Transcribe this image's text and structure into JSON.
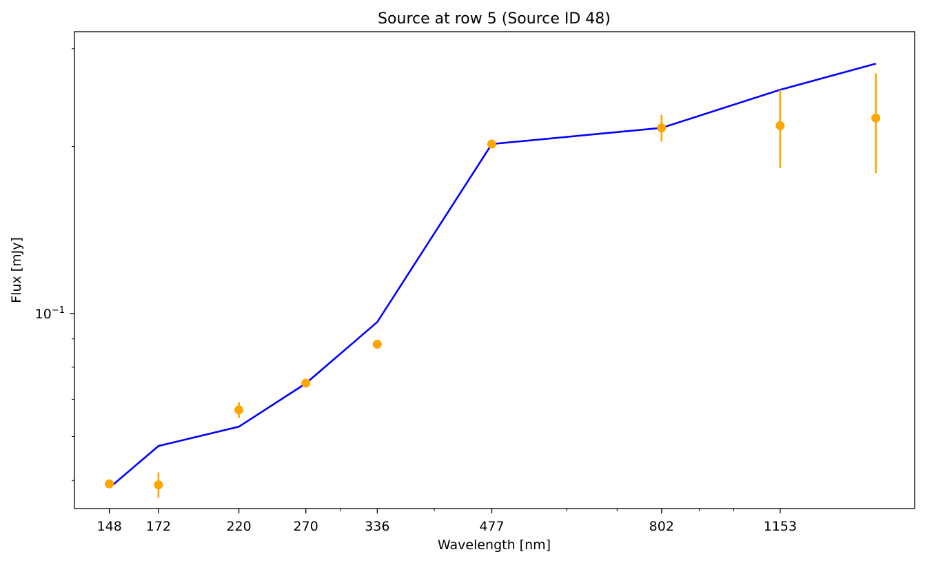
{
  "chart_data": {
    "type": "line",
    "title": "Source at row 5 (Source ID 48)",
    "xlabel": "Wavelength [nm]",
    "ylabel": "Flux [mJy]",
    "x_scale": "log",
    "y_scale": "log",
    "xlim": [
      133,
      1740
    ],
    "ylim": [
      0.0445,
      0.322
    ],
    "x_tick_labels": [
      "148",
      "172",
      "220",
      "270",
      "336",
      "477",
      "802",
      "1153"
    ],
    "x_ticks": [
      148,
      172,
      220,
      270,
      336,
      477,
      802,
      1153
    ],
    "x_minor_ticks": [
      300,
      400,
      600,
      700,
      900,
      1000
    ],
    "y_tick_label": "10",
    "y_tick_exponent": "−1",
    "y_major_tick": 0.1,
    "y_minor_ticks": [
      0.05,
      0.06,
      0.07,
      0.08,
      0.09,
      0.2,
      0.3
    ],
    "grid": false,
    "colors": {
      "model": "#0000ff",
      "observed": "#ffa500"
    },
    "series": [
      {
        "kind": "line",
        "x": [
          148,
          172,
          220,
          270,
          336,
          477,
          802,
          1153,
          1545
        ],
        "y": [
          0.0485,
          0.0577,
          0.0625,
          0.0748,
          0.0965,
          0.202,
          0.216,
          0.253,
          0.282
        ]
      },
      {
        "kind": "errorbar",
        "x": [
          148,
          172,
          220,
          270,
          336,
          477,
          802,
          1153,
          1545
        ],
        "y": [
          0.0493,
          0.0491,
          0.067,
          0.0749,
          0.088,
          0.202,
          0.216,
          0.218,
          0.225
        ],
        "err": [
          0.0008,
          0.0026,
          0.0022,
          0.001,
          0.001,
          0.0015,
          0.012,
          0.035,
          0.046
        ]
      }
    ]
  }
}
